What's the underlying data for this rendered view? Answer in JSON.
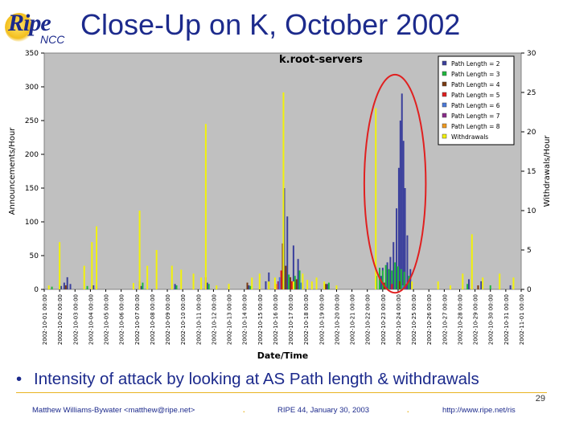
{
  "slide": {
    "logo_main": "Ripe",
    "logo_sub": "NCC",
    "title": "Close-Up on K, October 2002",
    "bullet": "Intensity of attack by looking at AS Path length & withdrawals",
    "page_number": "29",
    "footer_author": "Matthew Williams-Bywater <matthew@ripe.net>",
    "footer_event": "RIPE 44, January 30, 2003",
    "footer_url": "http://www.ripe.net/ris",
    "footer_separator": "."
  },
  "colors": {
    "title_blue": "#1c2a8c",
    "plot_bg": "#c0c0c0",
    "gold": "#e8b422",
    "circle": "#e02020"
  },
  "chart_data": {
    "type": "bar",
    "title": "k.root-servers",
    "xlabel": "Date/Time",
    "ylabel_left": "Announcements/Hour",
    "ylabel_right": "Withdrawals/Hour",
    "ylim_left": [
      0,
      350
    ],
    "ylim_right": [
      0,
      30
    ],
    "yticks_left": [
      "0",
      "50",
      "100",
      "150",
      "200",
      "250",
      "300",
      "350"
    ],
    "yticks_right": [
      "0",
      "5",
      "10",
      "15",
      "20",
      "25",
      "30"
    ],
    "x_tick_labels": [
      "2002-10-01 00:00",
      "2002-10-02 00:00",
      "2002-10-03 00:00",
      "2002-10-04 00:00",
      "2002-10-05 00:00",
      "2002-10-06 00:00",
      "2002-10-07 00:00",
      "2002-10-08 00:00",
      "2002-10-09 00:00",
      "2002-10-10 00:00",
      "2002-10-11 00:00",
      "2002-10-12 00:00",
      "2002-10-13 00:00",
      "2002-10-14 00:00",
      "2002-10-15 00:00",
      "2002-10-16 00:00",
      "2002-10-17 00:00",
      "2002-10-18 00:00",
      "2002-10-19 00:00",
      "2002-10-20 00:00",
      "2002-10-21 00:00",
      "2002-10-22 00:00",
      "2002-10-23 00:00",
      "2002-10-24 00:00",
      "2002-10-25 00:00",
      "2002-10-26 00:00",
      "2002-10-27 00:00",
      "2002-10-28 00:00",
      "2002-10-29 00:00",
      "2002-10-30 00:00",
      "2002-10-31 00:00",
      "2002-11-01 00:00"
    ],
    "grid": false,
    "legend_position": "top-right",
    "series": [
      {
        "name": "Path Length = 2",
        "color": "#3a3f9c",
        "axis": "left",
        "points": [
          [
            1.1,
            5
          ],
          [
            1.3,
            10
          ],
          [
            1.5,
            18
          ],
          [
            1.7,
            8
          ],
          [
            3.2,
            6
          ],
          [
            6.3,
            5
          ],
          [
            8.5,
            8
          ],
          [
            10.6,
            10
          ],
          [
            13.3,
            6
          ],
          [
            14.4,
            12
          ],
          [
            14.6,
            25
          ],
          [
            15.6,
            150
          ],
          [
            15.8,
            108
          ],
          [
            16.2,
            65
          ],
          [
            16.5,
            45
          ],
          [
            18.4,
            8
          ],
          [
            21.9,
            20
          ],
          [
            22.0,
            32
          ],
          [
            22.3,
            40
          ],
          [
            22.5,
            48
          ],
          [
            22.7,
            70
          ],
          [
            22.9,
            120
          ],
          [
            23.05,
            180
          ],
          [
            23.15,
            250
          ],
          [
            23.25,
            290
          ],
          [
            23.35,
            220
          ],
          [
            23.45,
            150
          ],
          [
            23.6,
            80
          ],
          [
            23.8,
            30
          ],
          [
            27.6,
            15
          ],
          [
            28.4,
            12
          ],
          [
            30.3,
            6
          ]
        ]
      },
      {
        "name": "Path Length = 3",
        "color": "#1eb83c",
        "axis": "left",
        "points": [
          [
            0.5,
            4
          ],
          [
            1.0,
            6
          ],
          [
            2.8,
            5
          ],
          [
            6.4,
            10
          ],
          [
            8.6,
            6
          ],
          [
            10.7,
            8
          ],
          [
            13.4,
            5
          ],
          [
            15.9,
            22
          ],
          [
            16.3,
            20
          ],
          [
            16.6,
            28
          ],
          [
            18.5,
            10
          ],
          [
            21.6,
            20
          ],
          [
            21.8,
            32
          ],
          [
            22.0,
            28
          ],
          [
            22.2,
            36
          ],
          [
            22.4,
            30
          ],
          [
            22.6,
            28
          ],
          [
            22.8,
            40
          ],
          [
            23.0,
            34
          ],
          [
            23.2,
            30
          ],
          [
            23.4,
            26
          ],
          [
            23.7,
            20
          ],
          [
            27.5,
            8
          ],
          [
            29.0,
            6
          ]
        ]
      },
      {
        "name": "Path Length = 4",
        "color": "#7a3a10",
        "axis": "left",
        "points": [
          [
            1.4,
            6
          ],
          [
            3.4,
            5
          ],
          [
            6.2,
            12
          ],
          [
            10.5,
            18
          ],
          [
            13.2,
            10
          ],
          [
            15.5,
            68
          ],
          [
            15.7,
            35
          ],
          [
            16.0,
            18
          ],
          [
            16.4,
            15
          ],
          [
            18.3,
            8
          ],
          [
            22.1,
            10
          ],
          [
            23.1,
            12
          ],
          [
            28.2,
            6
          ]
        ]
      },
      {
        "name": "Path Length = 5",
        "color": "#e01e1e",
        "axis": "left",
        "points": [
          [
            15.4,
            28
          ],
          [
            16.1,
            12
          ],
          [
            22.6,
            8
          ]
        ]
      },
      {
        "name": "Path Length = 6",
        "color": "#4a78d8",
        "axis": "left",
        "points": [
          [
            15.3,
            18
          ],
          [
            16.7,
            10
          ],
          [
            23.3,
            6
          ]
        ]
      },
      {
        "name": "Path Length = 7",
        "color": "#8a2a8a",
        "axis": "left",
        "points": [
          [
            15.2,
            12
          ],
          [
            23.5,
            5
          ]
        ]
      },
      {
        "name": "Path Length = 8",
        "color": "#f09a1e",
        "axis": "left",
        "points": [
          [
            15.1,
            8
          ]
        ]
      },
      {
        "name": "Withdrawals",
        "color": "#f2f20a",
        "axis": "right",
        "points": [
          [
            0.3,
            0.5
          ],
          [
            1.0,
            6
          ],
          [
            2.6,
            3
          ],
          [
            3.1,
            6
          ],
          [
            3.4,
            8
          ],
          [
            5.8,
            0.8
          ],
          [
            6.2,
            10
          ],
          [
            6.7,
            3
          ],
          [
            7.3,
            5
          ],
          [
            8.3,
            3
          ],
          [
            8.9,
            2.5
          ],
          [
            9.7,
            2
          ],
          [
            10.2,
            1.5
          ],
          [
            10.5,
            21
          ],
          [
            11.2,
            0.5
          ],
          [
            12.0,
            0.7
          ],
          [
            13.5,
            1.5
          ],
          [
            14.0,
            2
          ],
          [
            14.6,
            1
          ],
          [
            15.0,
            1.5
          ],
          [
            15.55,
            25
          ],
          [
            16.2,
            1
          ],
          [
            16.8,
            2
          ],
          [
            17.1,
            1.2
          ],
          [
            17.4,
            1
          ],
          [
            17.7,
            1.5
          ],
          [
            18.2,
            1
          ],
          [
            19.0,
            0.5
          ],
          [
            21.55,
            23
          ],
          [
            23.9,
            1
          ],
          [
            25.6,
            1
          ],
          [
            26.4,
            0.5
          ],
          [
            27.2,
            2
          ],
          [
            27.8,
            7
          ],
          [
            28.5,
            1.5
          ],
          [
            29.6,
            2
          ],
          [
            30.5,
            1.5
          ]
        ]
      }
    ],
    "annotations": [
      {
        "type": "ellipse",
        "x_range": [
          20.8,
          24.8
        ],
        "y_range_left": [
          -5,
          318
        ],
        "color": "#e02020"
      }
    ]
  }
}
